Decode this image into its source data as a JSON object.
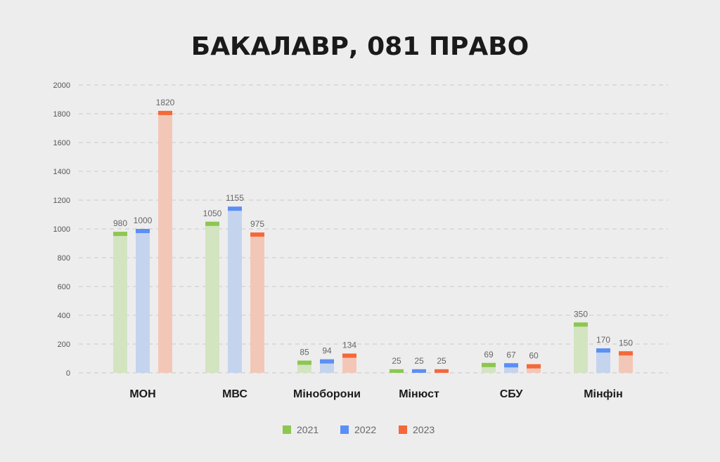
{
  "chart_data": {
    "type": "bar",
    "title": "БАКАЛАВР, 081 ПРАВО",
    "xlabel": "",
    "ylabel": "",
    "ylim": [
      0,
      2000
    ],
    "yticks": [
      0,
      200,
      400,
      600,
      800,
      1000,
      1200,
      1400,
      1600,
      1800,
      2000
    ],
    "grid": true,
    "legend_position": "bottom",
    "categories": [
      "МОН",
      "МВС",
      "Міноборони",
      "Мінюст",
      "СБУ",
      "Мінфін"
    ],
    "series": [
      {
        "name": "2021",
        "color": "#8cc751",
        "fill": "#d3e4c1",
        "values": [
          980,
          1050,
          85,
          25,
          69,
          350
        ]
      },
      {
        "name": "2022",
        "color": "#5b8ff5",
        "fill": "#c5d4ee",
        "values": [
          1000,
          1155,
          94,
          25,
          67,
          170
        ]
      },
      {
        "name": "2023",
        "color": "#f5683a",
        "fill": "#f3c7b7",
        "values": [
          1820,
          975,
          134,
          25,
          60,
          150
        ]
      }
    ]
  }
}
